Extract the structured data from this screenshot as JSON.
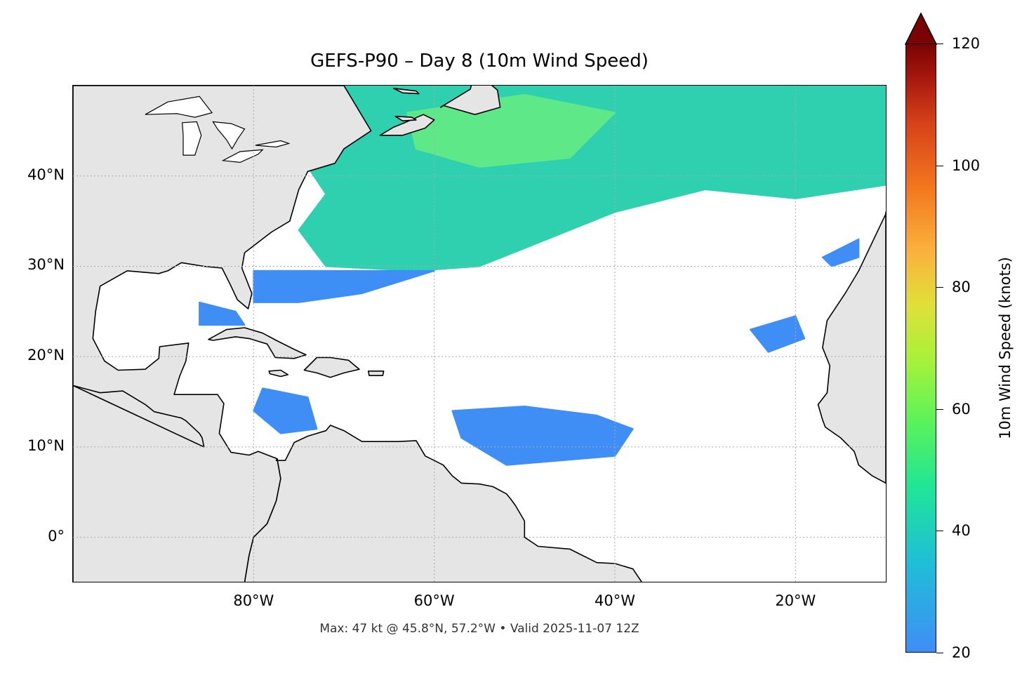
{
  "title": "GEFS-P90 – Day 8 (10m Wind Speed)",
  "footer": "Max: 47 kt @ 45.8°N, 57.2°W • Valid 2025-11-07 12Z",
  "map": {
    "projection": "PlateCarree",
    "lon_range": [
      -100,
      -10
    ],
    "lat_range": [
      -5,
      50
    ],
    "gridlines": true,
    "land_color": "#e5e5e5",
    "coastline_color": "#000000",
    "border_color": "#555555"
  },
  "lat_ticks": [
    {
      "value": 40,
      "label": "40°N"
    },
    {
      "value": 30,
      "label": "30°N"
    },
    {
      "value": 20,
      "label": "20°N"
    },
    {
      "value": 10,
      "label": "10°N"
    },
    {
      "value": 0,
      "label": "0°"
    }
  ],
  "lon_ticks": [
    {
      "value": -80,
      "label": "80°W"
    },
    {
      "value": -60,
      "label": "60°W"
    },
    {
      "value": -40,
      "label": "40°W"
    },
    {
      "value": -20,
      "label": "20°W"
    }
  ],
  "colorbar": {
    "label": "10m Wind Speed (knots)",
    "min": 20,
    "max": 120,
    "extend": "max",
    "ticks": [
      {
        "value": 120,
        "label": "120"
      },
      {
        "value": 100,
        "label": "100"
      },
      {
        "value": 80,
        "label": "80"
      },
      {
        "value": 60,
        "label": "60"
      },
      {
        "value": 40,
        "label": "40"
      },
      {
        "value": 20,
        "label": "20"
      }
    ],
    "colors": [
      "#3f8ef6",
      "#1fbfd6",
      "#1fe597",
      "#a8f13a",
      "#fbb13d",
      "#d7421a",
      "#7a0403"
    ]
  },
  "wind_regions": [
    {
      "name": "north-atlantic-band",
      "color": "#2fd0b0",
      "lonlat": [
        [
          -75,
          50
        ],
        [
          -10,
          50
        ],
        [
          -10,
          39
        ],
        [
          -20,
          37.5
        ],
        [
          -30,
          38.5
        ],
        [
          -40,
          36
        ],
        [
          -45,
          34
        ],
        [
          -55,
          30
        ],
        [
          -62,
          29.5
        ],
        [
          -72,
          30
        ],
        [
          -75,
          34
        ],
        [
          -72,
          38
        ],
        [
          -74,
          41
        ]
      ]
    },
    {
      "name": "north-atlantic-core",
      "color": "#5ee888",
      "lonlat": [
        [
          -63,
          47
        ],
        [
          -50,
          49
        ],
        [
          -40,
          47
        ],
        [
          -45,
          42
        ],
        [
          -55,
          41
        ],
        [
          -62,
          43
        ]
      ]
    },
    {
      "name": "bahamas-shear",
      "color": "#3f8ef6",
      "lonlat": [
        [
          -80,
          29.5
        ],
        [
          -60,
          29.5
        ],
        [
          -68,
          27
        ],
        [
          -75,
          26
        ],
        [
          -80,
          26
        ]
      ]
    },
    {
      "name": "florida-straits",
      "color": "#3f8ef6",
      "lonlat": [
        [
          -86,
          26
        ],
        [
          -82,
          25
        ],
        [
          -81,
          23.5
        ],
        [
          -86,
          23.5
        ]
      ]
    },
    {
      "name": "caribbean-patch",
      "color": "#3f8ef6",
      "lonlat": [
        [
          -79,
          16.5
        ],
        [
          -74,
          15.5
        ],
        [
          -73,
          12
        ],
        [
          -77,
          11.5
        ],
        [
          -80,
          14
        ]
      ]
    },
    {
      "name": "mid-atlantic-patch",
      "color": "#3f8ef6",
      "lonlat": [
        [
          -58,
          14
        ],
        [
          -50,
          14.5
        ],
        [
          -42,
          13.5
        ],
        [
          -38,
          12
        ],
        [
          -40,
          9
        ],
        [
          -52,
          8
        ],
        [
          -57,
          11
        ]
      ]
    },
    {
      "name": "east-atlantic-patch",
      "color": "#3f8ef6",
      "lonlat": [
        [
          -25,
          23
        ],
        [
          -20,
          24.5
        ],
        [
          -19,
          22
        ],
        [
          -23,
          20.5
        ]
      ]
    },
    {
      "name": "canary-patch",
      "color": "#3f8ef6",
      "lonlat": [
        [
          -17,
          31
        ],
        [
          -13,
          33
        ],
        [
          -13,
          31
        ],
        [
          -16,
          30
        ]
      ]
    },
    {
      "name": "gulf-of-tehuantepec-patch",
      "color": "#2fb6e0",
      "lonlat": [
        [
          -94,
          16
        ],
        [
          -93,
          16
        ],
        [
          -93,
          13
        ],
        [
          -94,
          13
        ]
      ]
    },
    {
      "name": "us-interior-patch",
      "color": "#3f8ef6",
      "lonlat": [
        [
          -97,
          39
        ],
        [
          -93,
          39.5
        ],
        [
          -92,
          37
        ],
        [
          -96,
          36.5
        ]
      ]
    }
  ],
  "land": [
    {
      "name": "north-america",
      "lonlat": [
        [
          -100,
          50
        ],
        [
          -70,
          50
        ],
        [
          -67,
          45
        ],
        [
          -70,
          43
        ],
        [
          -71,
          41.4
        ],
        [
          -74,
          40.5
        ],
        [
          -75,
          38.5
        ],
        [
          -76,
          35
        ],
        [
          -78,
          33.8
        ],
        [
          -81,
          31.5
        ],
        [
          -81.3,
          29.8
        ],
        [
          -80.2,
          27
        ],
        [
          -80.6,
          25.3
        ],
        [
          -81.8,
          26.3
        ],
        [
          -82.6,
          28
        ],
        [
          -83.5,
          29.8
        ],
        [
          -85.5,
          30
        ],
        [
          -88,
          30.4
        ],
        [
          -89.5,
          29.5
        ],
        [
          -90.5,
          29.2
        ],
        [
          -94,
          29.5
        ],
        [
          -97,
          27.8
        ],
        [
          -97.5,
          25
        ],
        [
          -97.8,
          22
        ],
        [
          -96.5,
          19.5
        ],
        [
          -95,
          18.5
        ],
        [
          -92,
          18.6
        ],
        [
          -90.5,
          19.8
        ],
        [
          -90.4,
          21.1
        ],
        [
          -87.2,
          21.5
        ],
        [
          -87.5,
          19.5
        ],
        [
          -88.2,
          17.8
        ],
        [
          -88.8,
          15.8
        ],
        [
          -84,
          15.8
        ],
        [
          -83.3,
          14.8
        ],
        [
          -83.8,
          11.5
        ],
        [
          -82.5,
          9.4
        ],
        [
          -80.5,
          9.1
        ],
        [
          -79.5,
          9.5
        ],
        [
          -77.4,
          8.7
        ],
        [
          -77,
          6.5
        ],
        [
          -77.5,
          4
        ],
        [
          -78.5,
          1.5
        ],
        [
          -80,
          0
        ],
        [
          -80.5,
          -2
        ],
        [
          -81,
          -5
        ],
        [
          -100,
          -5
        ],
        [
          -100,
          16.8
        ],
        [
          -97,
          16
        ],
        [
          -94.5,
          16.2
        ],
        [
          -92,
          14.7
        ],
        [
          -91,
          13.9
        ],
        [
          -88,
          13.2
        ],
        [
          -87.5,
          12.9
        ],
        [
          -86,
          11.5
        ],
        [
          -85.7,
          11
        ],
        [
          -85.5,
          10
        ],
        [
          -100,
          16.8
        ]
      ]
    },
    {
      "name": "south-america",
      "lonlat": [
        [
          -77.5,
          8.5
        ],
        [
          -76.5,
          8.5
        ],
        [
          -75.5,
          10.5
        ],
        [
          -74,
          11.2
        ],
        [
          -72,
          11.8
        ],
        [
          -71.5,
          12.4
        ],
        [
          -70,
          11.8
        ],
        [
          -68,
          10.6
        ],
        [
          -66,
          10.6
        ],
        [
          -64,
          10.6
        ],
        [
          -62,
          10.7
        ],
        [
          -61,
          9
        ],
        [
          -60,
          8.5
        ],
        [
          -59,
          8
        ],
        [
          -58,
          6.8
        ],
        [
          -57,
          6
        ],
        [
          -55,
          5.9
        ],
        [
          -53.5,
          5.6
        ],
        [
          -52,
          4.8
        ],
        [
          -51.5,
          4.2
        ],
        [
          -51,
          3.5
        ],
        [
          -50,
          1.8
        ],
        [
          -50,
          0
        ],
        [
          -48.5,
          -1
        ],
        [
          -45,
          -1.3
        ],
        [
          -42,
          -2.8
        ],
        [
          -40,
          -2.9
        ],
        [
          -38,
          -3.5
        ],
        [
          -37,
          -5
        ],
        [
          -81,
          -5
        ],
        [
          -80.5,
          -2
        ],
        [
          -80,
          0
        ],
        [
          -78.5,
          1.5
        ],
        [
          -77.5,
          4
        ],
        [
          -77,
          6.5
        ],
        [
          -77.4,
          8.7
        ]
      ]
    },
    {
      "name": "africa",
      "lonlat": [
        [
          -10,
          36
        ],
        [
          -10,
          35.8
        ],
        [
          -13,
          29.5
        ],
        [
          -14.5,
          27
        ],
        [
          -16.5,
          24
        ],
        [
          -17,
          21
        ],
        [
          -16.2,
          19
        ],
        [
          -16.5,
          16
        ],
        [
          -17.5,
          14.7
        ],
        [
          -17,
          13
        ],
        [
          -16.7,
          12.2
        ],
        [
          -15,
          11
        ],
        [
          -13.5,
          9.5
        ],
        [
          -13,
          8
        ],
        [
          -11.5,
          6.8
        ],
        [
          -10,
          6
        ],
        [
          -10,
          36
        ]
      ]
    },
    {
      "name": "cuba",
      "lonlat": [
        [
          -85,
          21.9
        ],
        [
          -83,
          23
        ],
        [
          -81,
          23.2
        ],
        [
          -79,
          22.6
        ],
        [
          -77.5,
          21.8
        ],
        [
          -75.5,
          20.8
        ],
        [
          -74.2,
          20.2
        ],
        [
          -75.5,
          19.8
        ],
        [
          -77.6,
          19.9
        ],
        [
          -78.5,
          21.4
        ],
        [
          -80.5,
          22
        ],
        [
          -82,
          22.2
        ],
        [
          -84.5,
          21.8
        ]
      ]
    },
    {
      "name": "hispaniola",
      "lonlat": [
        [
          -74.4,
          18.5
        ],
        [
          -73,
          19.9
        ],
        [
          -71.5,
          19.9
        ],
        [
          -69.5,
          19.6
        ],
        [
          -68.3,
          18.6
        ],
        [
          -70,
          18.2
        ],
        [
          -71.5,
          17.7
        ],
        [
          -73,
          18.2
        ]
      ]
    },
    {
      "name": "jamaica",
      "lonlat": [
        [
          -78.3,
          18.4
        ],
        [
          -77,
          18.5
        ],
        [
          -76.2,
          18
        ],
        [
          -77,
          17.8
        ],
        [
          -78.2,
          18.1
        ]
      ]
    },
    {
      "name": "puerto-rico",
      "lonlat": [
        [
          -67.3,
          18.4
        ],
        [
          -65.6,
          18.4
        ],
        [
          -65.7,
          17.9
        ],
        [
          -67.2,
          17.9
        ]
      ]
    },
    {
      "name": "newfoundland",
      "lonlat": [
        [
          -59.3,
          47.6
        ],
        [
          -56,
          49.6
        ],
        [
          -55.5,
          51.6
        ],
        [
          -53,
          49.5
        ],
        [
          -52.7,
          47.6
        ],
        [
          -55.5,
          46.8
        ],
        [
          -59,
          47.8
        ]
      ]
    },
    {
      "name": "nova-scotia",
      "lonlat": [
        [
          -66,
          44.5
        ],
        [
          -63.5,
          44.5
        ],
        [
          -61,
          45.3
        ],
        [
          -60,
          46.2
        ],
        [
          -61.2,
          46.8
        ],
        [
          -63.5,
          45.8
        ],
        [
          -64.5,
          45.4
        ]
      ]
    },
    {
      "name": "pei",
      "lonlat": [
        [
          -64.3,
          46.6
        ],
        [
          -62.5,
          46.5
        ],
        [
          -62,
          46.2
        ],
        [
          -63.5,
          46.1
        ]
      ]
    },
    {
      "name": "anticosti",
      "lonlat": [
        [
          -64.5,
          49.7
        ],
        [
          -62,
          49.4
        ],
        [
          -61.7,
          49.1
        ],
        [
          -63.5,
          49.2
        ]
      ]
    }
  ],
  "lakes": [
    {
      "name": "lake-michigan",
      "lonlat": [
        [
          -87.9,
          45.9
        ],
        [
          -86.3,
          46
        ],
        [
          -85.8,
          44.5
        ],
        [
          -86.5,
          42.3
        ],
        [
          -87.8,
          42.3
        ],
        [
          -87.8,
          44.5
        ]
      ]
    },
    {
      "name": "lake-huron",
      "lonlat": [
        [
          -84.5,
          46
        ],
        [
          -82.5,
          45.8
        ],
        [
          -81,
          45.2
        ],
        [
          -81.7,
          44.2
        ],
        [
          -82.4,
          43
        ],
        [
          -83,
          44
        ],
        [
          -84,
          45.2
        ]
      ]
    },
    {
      "name": "lake-erie",
      "lonlat": [
        [
          -83.4,
          41.7
        ],
        [
          -81.5,
          42.7
        ],
        [
          -79,
          42.9
        ],
        [
          -79.5,
          42.4
        ],
        [
          -81.5,
          41.5
        ]
      ]
    },
    {
      "name": "lake-ontario",
      "lonlat": [
        [
          -79.8,
          43.4
        ],
        [
          -77,
          43.9
        ],
        [
          -76.1,
          43.6
        ],
        [
          -77.5,
          43.2
        ]
      ]
    },
    {
      "name": "lake-superior",
      "lonlat": [
        [
          -92,
          46.8
        ],
        [
          -89.5,
          48.2
        ],
        [
          -86,
          48.8
        ],
        [
          -84.6,
          47
        ],
        [
          -86.5,
          46.5
        ],
        [
          -88.5,
          46.9
        ]
      ]
    }
  ]
}
